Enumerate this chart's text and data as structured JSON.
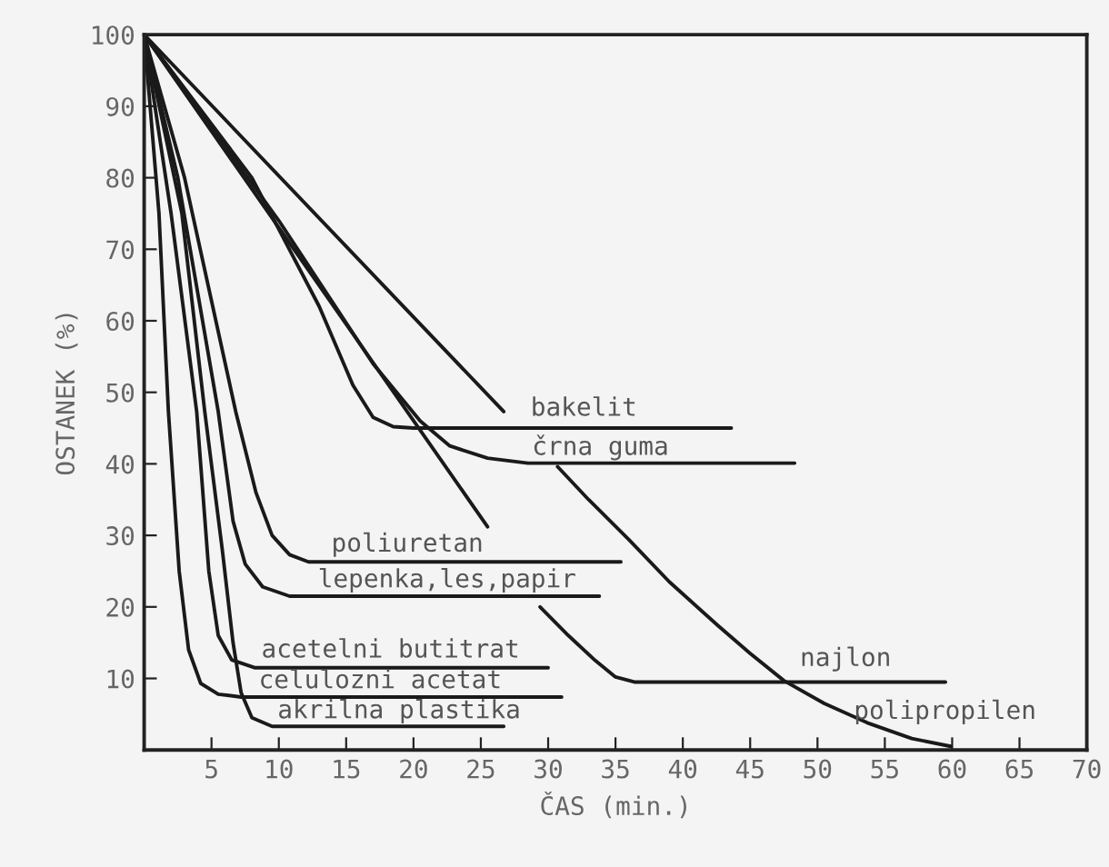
{
  "chart_data": {
    "type": "line",
    "xlabel": "ČAS (min.)",
    "ylabel": "OSTANEK (%)",
    "xlim": [
      0,
      70
    ],
    "ylim": [
      0,
      100
    ],
    "xticks": [
      {
        "value": 0,
        "label": null
      },
      5,
      10,
      15,
      20,
      25,
      30,
      35,
      40,
      45,
      50,
      55,
      60,
      65,
      70
    ],
    "yticks": [
      {
        "value": 0,
        "label": null
      },
      10,
      20,
      30,
      40,
      50,
      60,
      70,
      80,
      90,
      100
    ],
    "grid": false,
    "legend": false,
    "marker": "none",
    "line_style": "solid",
    "series": [
      {
        "color": "#1a1a1a",
        "x": [
          0,
          26.7
        ],
        "values": [
          100,
          47.3
        ]
      },
      {
        "color": "#1a1a1a",
        "x": [
          0,
          8,
          13,
          15.5,
          17,
          18.5,
          20,
          43.6
        ],
        "values": [
          100,
          80,
          62,
          51,
          46.5,
          45.2,
          45,
          45
        ]
      },
      {
        "color": "#1a1a1a",
        "x": [
          0,
          25.5
        ],
        "values": [
          100,
          31.2
        ]
      },
      {
        "color": "#1a1a1a",
        "x": [
          0,
          10,
          17,
          20.5,
          22.7,
          25.5,
          28.5,
          48.3
        ],
        "values": [
          100,
          74,
          54,
          46,
          42.5,
          40.8,
          40.1,
          40.1
        ]
      },
      {
        "color": "#1a1a1a",
        "x": [
          30.7,
          33,
          36,
          39,
          42.6,
          45,
          47.5,
          50.5,
          53.7,
          57,
          59.9
        ],
        "values": [
          39.6,
          35,
          29.4,
          23.5,
          17.4,
          13.5,
          9.7,
          6.5,
          3.8,
          1.6,
          0.5
        ]
      },
      {
        "color": "#1a1a1a",
        "x": [
          29.4,
          31.5,
          33.5,
          35,
          36.4,
          59.5
        ],
        "values": [
          20,
          16,
          12.5,
          10.2,
          9.5,
          9.5
        ]
      },
      {
        "color": "#1a1a1a",
        "x": [
          0,
          3,
          6.8,
          8.3,
          9.5,
          10.8,
          12.2,
          35.4
        ],
        "values": [
          100,
          80,
          47.3,
          36,
          30,
          27.3,
          26.3,
          26.3
        ]
      },
      {
        "color": "#1a1a1a",
        "x": [
          0,
          2.5,
          5.5,
          6.6,
          7.5,
          8.8,
          10.8,
          33.8
        ],
        "values": [
          100,
          80,
          47.3,
          32,
          26,
          22.8,
          21.5,
          21.5
        ]
      },
      {
        "color": "#1a1a1a",
        "x": [
          0,
          2,
          3.9,
          4.8,
          5.5,
          6.5,
          8.2,
          30
        ],
        "values": [
          100,
          75,
          47.3,
          25,
          16,
          12.6,
          11.5,
          11.5
        ]
      },
      {
        "color": "#1a1a1a",
        "x": [
          0,
          1.1,
          1.8,
          2.6,
          3.3,
          4.2,
          5.5,
          7.2,
          31
        ],
        "values": [
          100,
          75,
          47.3,
          25,
          14,
          9.3,
          7.8,
          7.4,
          7.4
        ]
      },
      {
        "color": "#1a1a1a",
        "x": [
          0,
          2.8,
          4.5,
          5.8,
          6.6,
          7.2,
          8,
          9.5,
          26.7
        ],
        "values": [
          100,
          75,
          47.3,
          28,
          15,
          8,
          4.5,
          3.3,
          3.3
        ]
      }
    ],
    "annotations": [
      {
        "text": "bakelit",
        "x": 28.7,
        "y": 46
      },
      {
        "text": "črna guma",
        "x": 28.8,
        "y": 40.5
      },
      {
        "text": "poliuretan",
        "x": 13.9,
        "y": 27
      },
      {
        "text": "lepenka,les,papir",
        "x": 12.9,
        "y": 22
      },
      {
        "text": "acetelni butitrat",
        "x": 8.7,
        "y": 12.2
      },
      {
        "text": "celulozni acetat",
        "x": 8.5,
        "y": 7.9
      },
      {
        "text": "akrilna plastika",
        "x": 9.9,
        "y": 3.7
      },
      {
        "text": "najlon",
        "x": 48.7,
        "y": 11
      },
      {
        "text": "polipropilen",
        "x": 52.7,
        "y": 3.6
      }
    ]
  }
}
